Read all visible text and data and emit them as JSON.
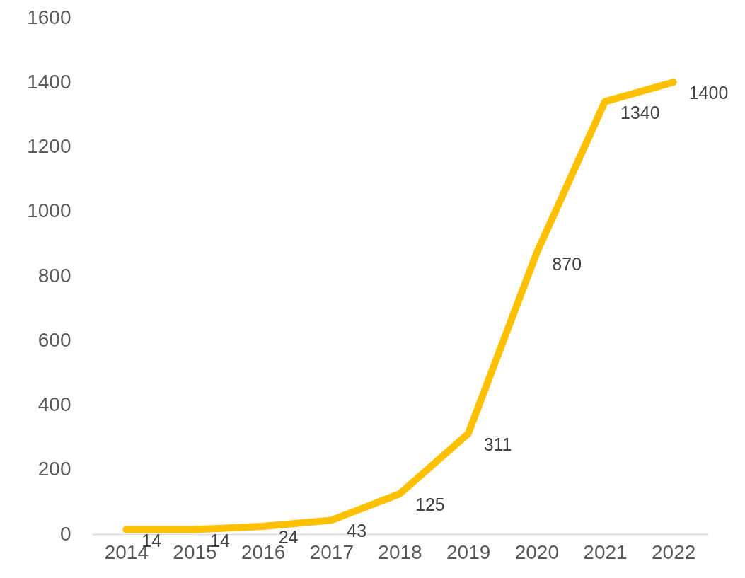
{
  "chart_data": {
    "type": "line",
    "categories": [
      "2014",
      "2015",
      "2016",
      "2017",
      "2018",
      "2019",
      "2020",
      "2021",
      "2022"
    ],
    "series": [
      {
        "color": "#ffc000",
        "values": [
          14,
          14,
          24,
          43,
          125,
          311,
          870,
          1340,
          1400
        ]
      }
    ],
    "ylim": [
      0,
      1600
    ],
    "yticks": [
      0,
      200,
      400,
      600,
      800,
      1000,
      1200,
      1400,
      1600
    ],
    "data_labels": true
  }
}
